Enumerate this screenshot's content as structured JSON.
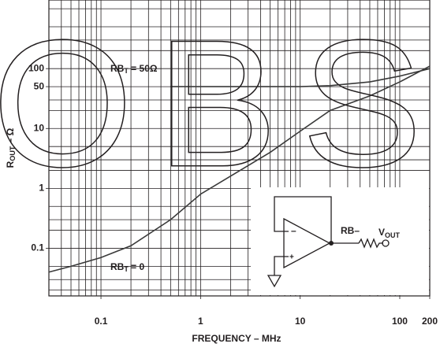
{
  "chart_data": {
    "type": "line",
    "x_label": "FREQUENCY – MHz",
    "y_label": [
      "R",
      "OUT",
      " – Ω"
    ],
    "log_x": true,
    "log_y": true,
    "xlim": [
      0.03,
      200
    ],
    "ylim": [
      0.016,
      1400
    ],
    "xticks": [
      0.1,
      1,
      10,
      100,
      200
    ],
    "yticks": [
      0.1,
      1,
      10,
      50,
      100
    ],
    "x_grid": [
      0.04,
      0.05,
      0.06,
      0.07,
      0.08,
      0.09,
      0.1,
      0.2,
      0.3,
      0.4,
      0.5,
      0.6,
      0.7,
      0.8,
      0.9,
      1,
      2,
      3,
      4,
      5,
      6,
      7,
      8,
      9,
      10,
      20,
      30,
      40,
      50,
      60,
      70,
      80,
      90,
      100,
      200
    ],
    "y_grid": [
      0.02,
      0.03,
      0.05,
      0.1,
      0.2,
      0.3,
      0.5,
      1,
      2,
      3,
      5,
      10,
      20,
      30,
      50,
      100,
      200,
      300,
      500,
      1000
    ],
    "x": [
      0.03,
      0.05,
      0.1,
      0.2,
      0.5,
      1,
      2,
      5,
      10,
      20,
      50,
      100,
      200
    ],
    "series": [
      {
        "name": [
          "RB",
          "T",
          " = 50Ω"
        ],
        "color": "#3a3a3a",
        "values": [
          null,
          null,
          null,
          null,
          50,
          50,
          50,
          50,
          50,
          52,
          60,
          75,
          100
        ]
      },
      {
        "name": [
          "RB",
          "T",
          " = 0"
        ],
        "color": "#3a3a3a",
        "values": [
          0.04,
          0.05,
          0.07,
          0.11,
          0.3,
          0.8,
          1.6,
          4,
          9,
          20,
          35,
          60,
          110
        ]
      }
    ],
    "inset": {
      "minus": "–",
      "plus": "+",
      "resistor": "RB–",
      "output": [
        "V",
        "OUT"
      ]
    },
    "watermark": "OBSO"
  }
}
